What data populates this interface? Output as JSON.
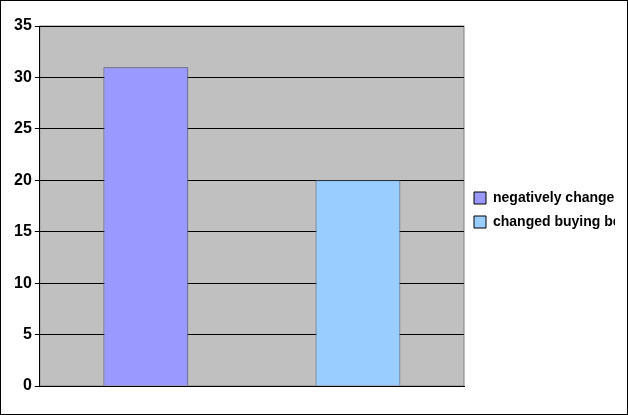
{
  "chart_data": {
    "type": "bar",
    "categories": [
      "negatively changed perception",
      "changed buying behaviour"
    ],
    "values": [
      31,
      20
    ],
    "colors": [
      "#9999ff",
      "#99ccff"
    ],
    "ylim": [
      0,
      35
    ],
    "yticks": [
      0,
      5,
      10,
      15,
      20,
      25,
      30,
      35
    ],
    "grid": true,
    "legend": "right",
    "tick_labels": "y"
  }
}
